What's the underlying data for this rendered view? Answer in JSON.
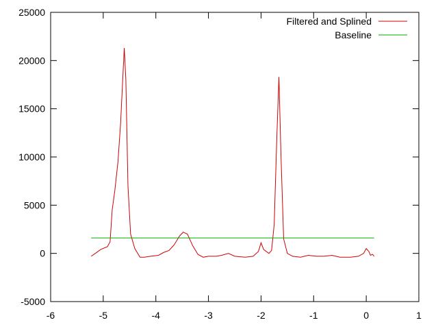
{
  "chart_data": {
    "type": "line",
    "xlim": [
      -6,
      1
    ],
    "xticks": [
      -6,
      -5,
      -4,
      -3,
      -2,
      -1,
      0,
      1
    ],
    "ylim": [
      -5000,
      25000
    ],
    "yticks": [
      -5000,
      0,
      5000,
      10000,
      15000,
      20000,
      25000
    ],
    "legend": "top-right",
    "series": [
      {
        "name": "Filtered and Splined",
        "color": "#cc0000",
        "x": [
          -5.23,
          -5.15,
          -5.05,
          -4.92,
          -4.87,
          -4.83,
          -4.78,
          -4.72,
          -4.67,
          -4.63,
          -4.6,
          -4.57,
          -4.53,
          -4.48,
          -4.4,
          -4.3,
          -4.22,
          -4.1,
          -3.95,
          -3.85,
          -3.75,
          -3.65,
          -3.55,
          -3.48,
          -3.4,
          -3.3,
          -3.2,
          -3.1,
          -3.0,
          -2.85,
          -2.75,
          -2.62,
          -2.5,
          -2.3,
          -2.15,
          -2.05,
          -2.0,
          -1.95,
          -1.85,
          -1.8,
          -1.75,
          -1.7,
          -1.66,
          -1.62,
          -1.57,
          -1.5,
          -1.4,
          -1.25,
          -1.1,
          -0.95,
          -0.8,
          -0.65,
          -0.5,
          -0.3,
          -0.15,
          -0.05,
          0.0,
          0.05,
          0.08,
          0.12,
          0.15
        ],
        "values": [
          -300,
          0,
          400,
          700,
          1200,
          4500,
          6500,
          9500,
          13500,
          18000,
          21300,
          18000,
          7000,
          2000,
          500,
          -400,
          -400,
          -300,
          -200,
          100,
          300,
          900,
          1800,
          2200,
          2000,
          800,
          -100,
          -400,
          -300,
          -300,
          -200,
          0,
          -300,
          -400,
          -300,
          200,
          1100,
          400,
          0,
          300,
          3000,
          12000,
          18300,
          10000,
          1500,
          0,
          -300,
          -400,
          -200,
          -300,
          -300,
          -200,
          -400,
          -400,
          -300,
          0,
          500,
          200,
          -200,
          -100,
          -300
        ]
      },
      {
        "name": "Baseline",
        "color": "#00aa00",
        "x": [
          -5.23,
          0.15
        ],
        "values": [
          1600,
          1600
        ]
      }
    ]
  }
}
